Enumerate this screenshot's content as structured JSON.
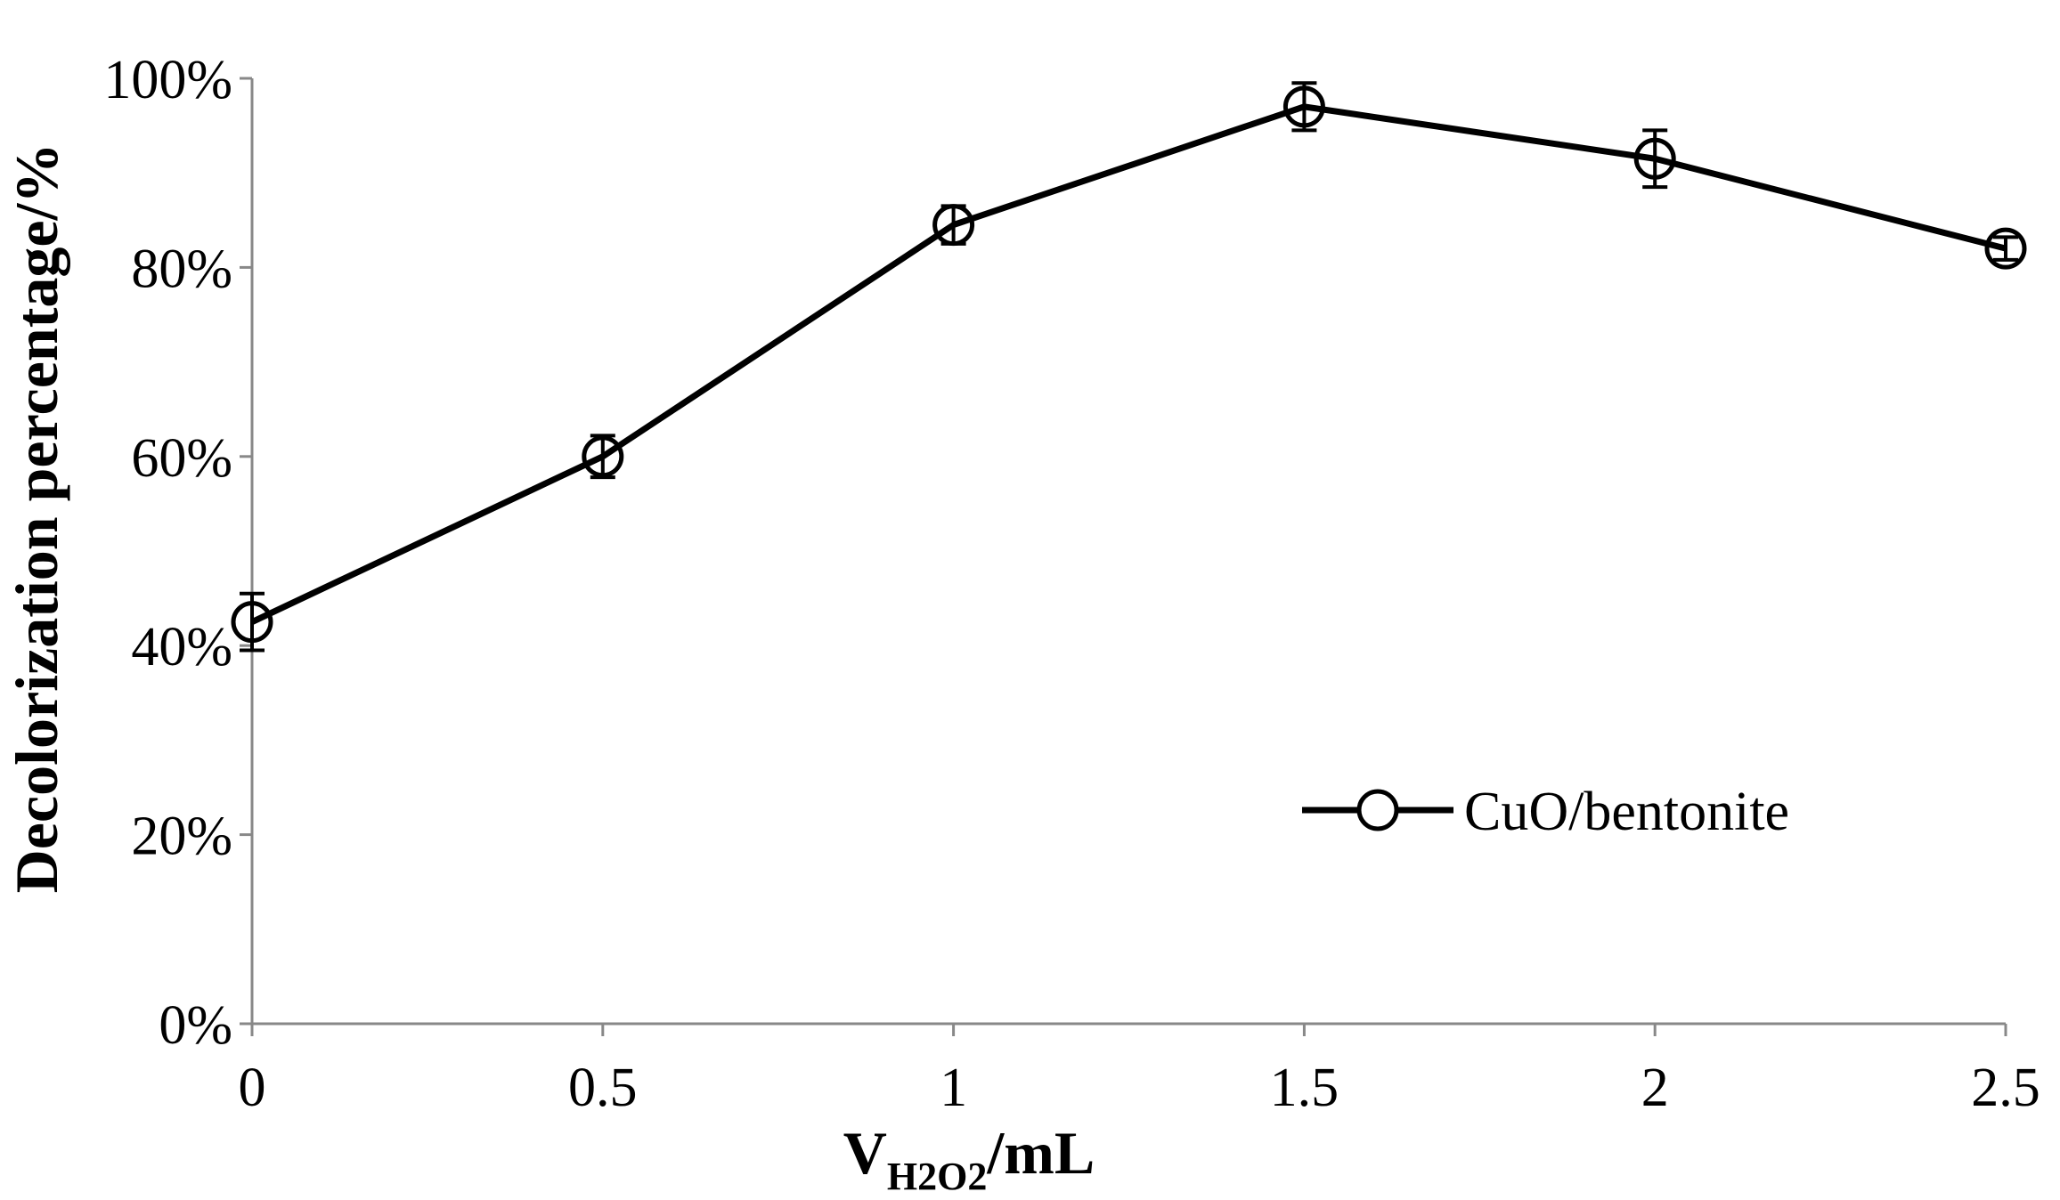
{
  "chart_data": {
    "type": "line",
    "title": "",
    "xlabel": {
      "main": "V",
      "subscript": "H2O2",
      "suffix": "/mL"
    },
    "ylabel": "Decolorization percentage/%",
    "x_ticks": [
      "0",
      "0.5",
      "1",
      "1.5",
      "2",
      "2.5"
    ],
    "y_ticks": [
      "0%",
      "20%",
      "40%",
      "60%",
      "80%",
      "100%"
    ],
    "xlim": [
      0,
      2.5
    ],
    "ylim": [
      0,
      100
    ],
    "grid": false,
    "legend_position": "bottom-right",
    "series": [
      {
        "name": "CuO/bentonite",
        "color": "#000000",
        "marker": "open-circle",
        "x": [
          0,
          0.5,
          1,
          1.5,
          2,
          2.5
        ],
        "y": [
          42.5,
          60,
          84.5,
          97,
          91.5,
          82
        ],
        "error": [
          3,
          2.2,
          2,
          2.5,
          3,
          1.2
        ]
      }
    ]
  }
}
